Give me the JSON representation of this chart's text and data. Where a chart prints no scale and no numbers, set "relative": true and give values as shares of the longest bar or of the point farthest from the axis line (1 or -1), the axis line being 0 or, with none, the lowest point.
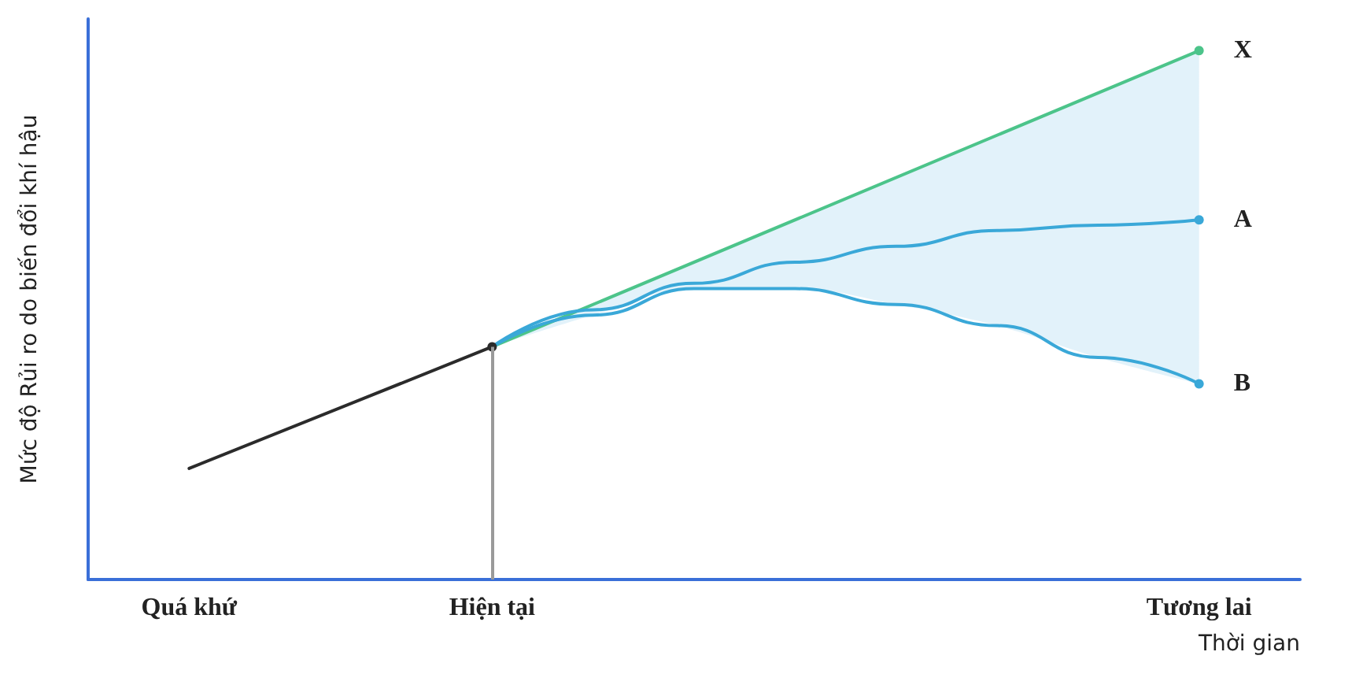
{
  "chart_data": {
    "type": "line",
    "relative": true,
    "xlabel": "Thời gian",
    "ylabel": "Mức độ Rủi ro do biến đổi khí hậu",
    "categories": [
      null,
      "Quá khứ",
      null,
      null,
      "Hiện tại",
      null,
      null,
      null,
      null,
      null,
      null,
      "Tương lai",
      null
    ],
    "grid": false,
    "legend": false,
    "series": [
      {
        "color": "#2b2b2b",
        "values": [
          null,
          0.21,
          null,
          null,
          0.44,
          null,
          null,
          null,
          null,
          null,
          null,
          null,
          null
        ]
      },
      {
        "name": "X",
        "color": "#4cc48a",
        "values": [
          null,
          null,
          null,
          null,
          0.44,
          null,
          null,
          null,
          null,
          null,
          null,
          1.0,
          null
        ]
      },
      {
        "name": "A",
        "color": "#3aa8d8",
        "values": [
          null,
          null,
          null,
          null,
          0.44,
          0.51,
          0.56,
          0.6,
          0.63,
          0.66,
          0.67,
          0.68,
          null
        ],
        "lower": [
          null,
          null,
          null,
          null,
          0.44,
          0.5,
          0.55,
          0.55,
          0.52,
          0.48,
          0.42,
          0.37,
          null
        ],
        "upper": [
          null,
          null,
          null,
          null,
          0.44,
          0.52,
          0.6,
          0.68,
          0.76,
          0.84,
          0.92,
          1.0,
          null
        ]
      },
      {
        "name": "B",
        "color": "#3aa8d8",
        "values": [
          null,
          null,
          null,
          null,
          0.44,
          0.5,
          0.55,
          0.55,
          0.52,
          0.48,
          0.42,
          0.37,
          null
        ]
      }
    ],
    "ref_lines": [
      {
        "axis": "x",
        "value": "Hiện tại",
        "color": "#9a9a9a"
      }
    ]
  }
}
